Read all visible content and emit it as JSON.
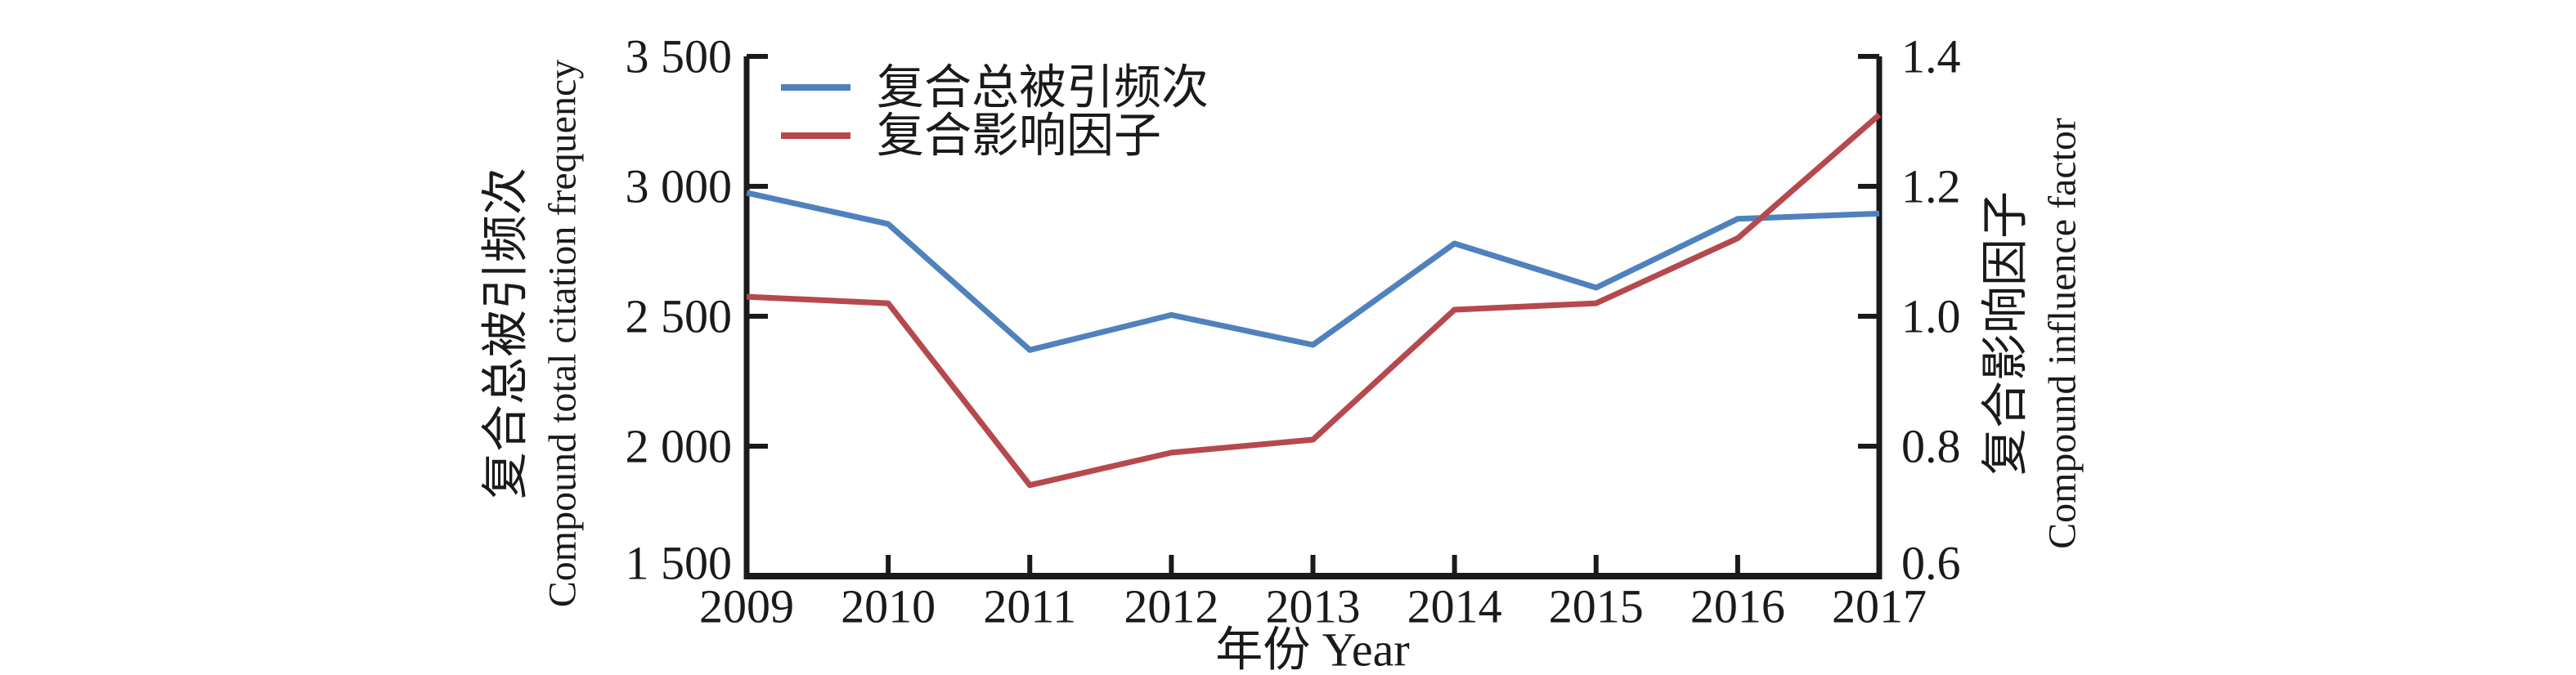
{
  "figure": {
    "background": "#ffffff",
    "text_color": "#1a1a1a"
  },
  "legend": {
    "position": "top-left-inside",
    "items": [
      {
        "label": "复合总被引频次",
        "color": "#4F81BD"
      },
      {
        "label": "复合影响因子",
        "color": "#B5494D"
      }
    ]
  },
  "chart_data": {
    "type": "line",
    "dual_axis": true,
    "grid": false,
    "categories": [
      "2009",
      "2010",
      "2011",
      "2012",
      "2013",
      "2014",
      "2015",
      "2016",
      "2017"
    ],
    "series": [
      {
        "name": "复合总被引频次",
        "axis": "left",
        "color": "#4F81BD",
        "values": [
          2975,
          2855,
          2370,
          2505,
          2390,
          2780,
          2610,
          2875,
          2895
        ]
      },
      {
        "name": "复合影响因子",
        "axis": "right",
        "color": "#B5494D",
        "values": [
          1.03,
          1.02,
          0.74,
          0.79,
          0.81,
          1.01,
          1.02,
          1.12,
          1.31
        ]
      }
    ],
    "x_axis": {
      "title": "年份 Year",
      "tick_labels": [
        "2009",
        "2010",
        "2011",
        "2012",
        "2013",
        "2014",
        "2015",
        "2016",
        "2017"
      ]
    },
    "left_axis": {
      "title_zh": "复合总被引频次",
      "title_en": "Compound total citation frequency",
      "min": 1500,
      "max": 3500,
      "step": 500,
      "tick_labels": [
        "1 500",
        "2 000",
        "2 500",
        "3 000",
        "3 500"
      ]
    },
    "right_axis": {
      "title_zh": "复合影响因子",
      "title_en": "Compound influence factor",
      "min": 0.6,
      "max": 1.4,
      "step": 0.2,
      "tick_labels": [
        "0.6",
        "0.8",
        "1.0",
        "1.2",
        "1.4"
      ]
    }
  }
}
